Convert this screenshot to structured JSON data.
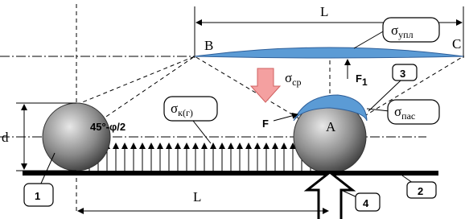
{
  "top_dimension": "L",
  "bottom_dimension": "L",
  "diameter": "d",
  "points": {
    "A": "A",
    "B": "B",
    "C": "C"
  },
  "pressure": {
    "symbol": "σ",
    "sub": "ср"
  },
  "force_f1": {
    "symbol": "F",
    "sub": "1"
  },
  "force_f": "F",
  "angle": "45°-φ/2",
  "callouts": {
    "compaction": {
      "symbol": "σ",
      "sub": "упл"
    },
    "contact": {
      "symbol": "σ",
      "sub": "к(г)"
    },
    "passive": {
      "symbol": "σ",
      "sub": "пас"
    },
    "n1": "1",
    "n2": "2",
    "n3": "3",
    "n4": "4"
  }
}
